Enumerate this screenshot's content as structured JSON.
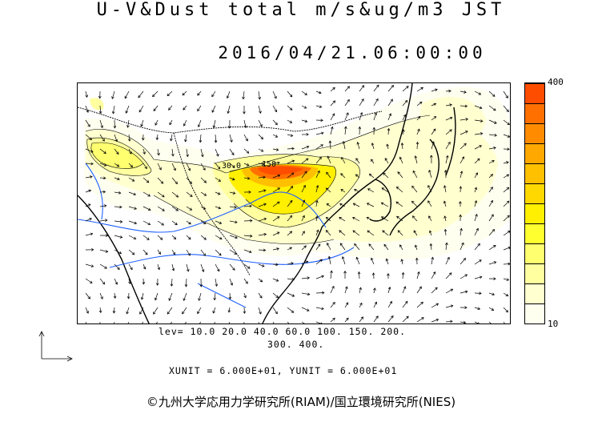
{
  "header": {
    "title_line1": "U-V&Dust total m/s&ug/m3 JST",
    "title_line2": "2016/04/21.06:00:00"
  },
  "colorbar": {
    "max_label": "400",
    "min_label": "10",
    "colors": [
      "#fffff0",
      "#ffffd0",
      "#ffffa0",
      "#ffff70",
      "#ffff30",
      "#ffef00",
      "#ffd800",
      "#ffc000",
      "#ffa800",
      "#ff8c00",
      "#ff7000",
      "#ff4d00"
    ]
  },
  "levels": {
    "line1": "lev= 10.0 20.0 40.0 60.0 100. 150. 200.",
    "line2": "300. 400."
  },
  "units": "XUNIT = 6.000E+01, YUNIT = 6.000E+01",
  "credit": "©九州大学応用力学研究所(RIAM)/国立環境研究所(NIES)",
  "contour_labels": [
    "30.0",
    "150"
  ],
  "colors": {
    "coast": "#000000",
    "river": "#2060ff",
    "arrow": "#000000"
  }
}
